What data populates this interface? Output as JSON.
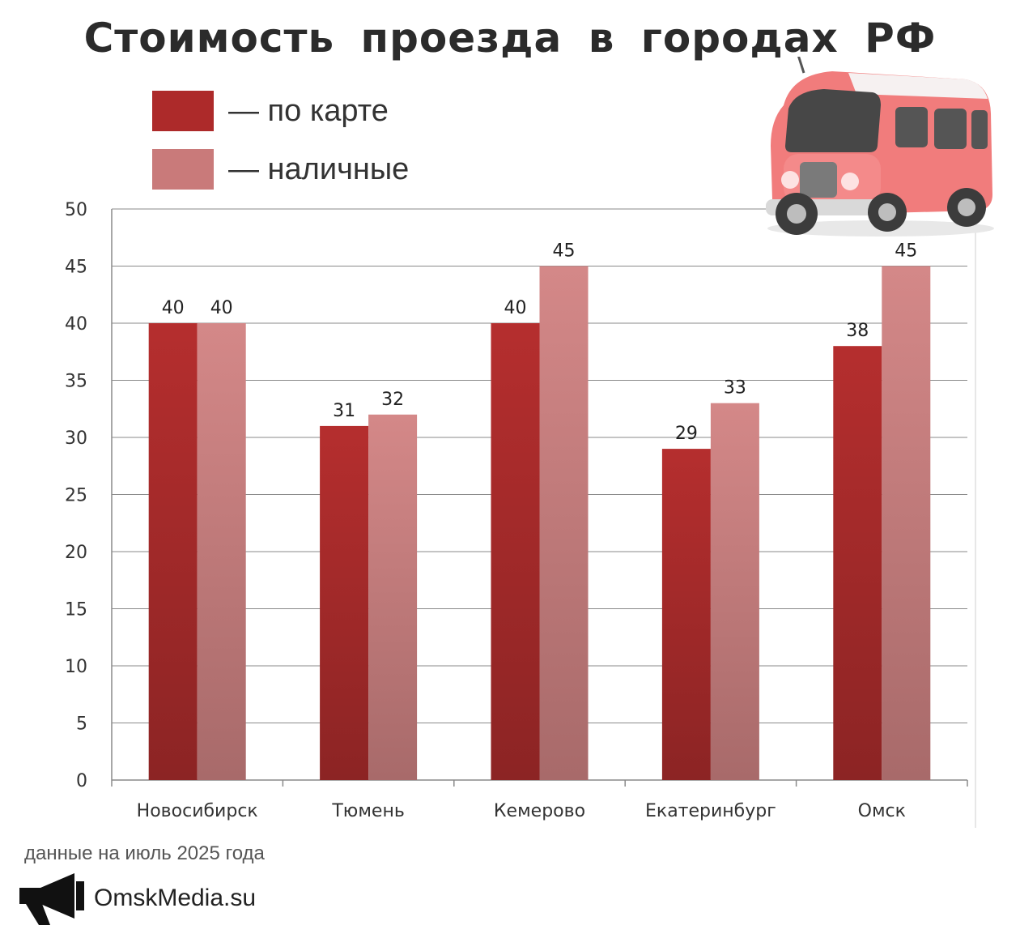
{
  "title": "Стоимость проезда в городах РФ",
  "legend": [
    {
      "label": "— по карте",
      "color": "#ad2a2a"
    },
    {
      "label": "— наличные",
      "color": "#c97a7a"
    }
  ],
  "footer": {
    "note": "данные на июль 2025 года",
    "brand": "OmskMedia.su",
    "brand_icon": "megaphone-icon"
  },
  "chart_data": {
    "type": "bar",
    "categories": [
      "Новосибирск",
      "Тюмень",
      "Кемерово",
      "Екатеринбург",
      "Омск"
    ],
    "series": [
      {
        "name": "по карте",
        "values": [
          40,
          31,
          40,
          29,
          38
        ],
        "color": "#ad2a2a"
      },
      {
        "name": "наличные",
        "values": [
          40,
          32,
          45,
          33,
          45
        ],
        "color": "#c97a7a"
      }
    ],
    "ylim": [
      0,
      50
    ],
    "yticks": [
      0,
      5,
      10,
      15,
      20,
      25,
      30,
      35,
      40,
      45,
      50
    ],
    "grid": true,
    "legend_position": "top-left"
  }
}
